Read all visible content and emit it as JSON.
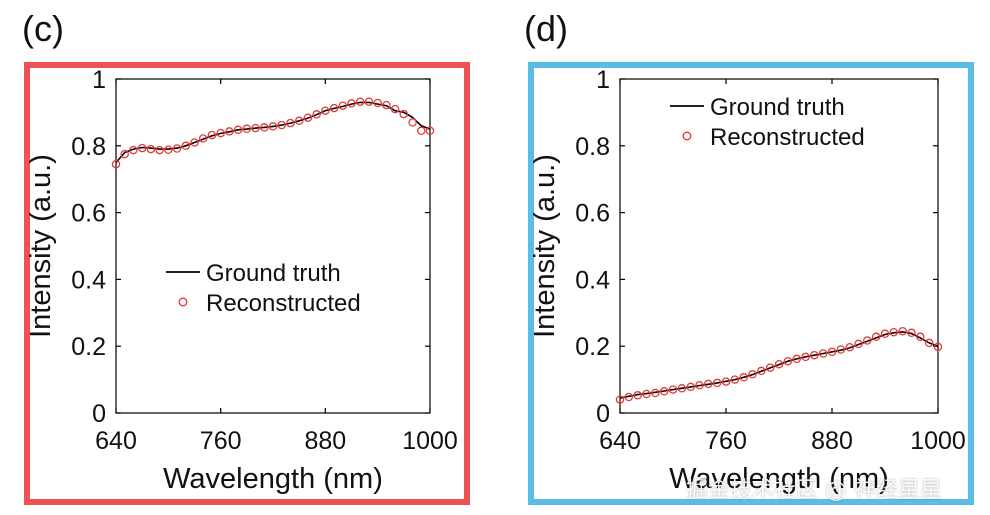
{
  "panel_labels": [
    "(c)",
    "(d)"
  ],
  "frame_colors": [
    "#ee5252",
    "#5bbde4"
  ],
  "watermark": "掘金技术社区 @ 神经星星",
  "chart_data": [
    {
      "type": "line",
      "xlabel": "Wavelength (nm)",
      "ylabel": "Intensity (a.u.)",
      "xlim": [
        640,
        1000
      ],
      "ylim": [
        0,
        1
      ],
      "xticks": [
        640,
        760,
        880,
        1000
      ],
      "yticks": [
        0,
        0.2,
        0.4,
        0.6,
        0.8,
        1
      ],
      "ytick_labels": [
        "0",
        "0.2",
        "0.4",
        "0.6",
        "0.8",
        "1"
      ],
      "legend": {
        "position": "center",
        "entries": [
          "Ground truth",
          "Reconstructed"
        ]
      },
      "series": [
        {
          "name": "Ground truth",
          "style": "line",
          "color": "#000000",
          "x": [
            640,
            650,
            660,
            670,
            680,
            690,
            700,
            710,
            720,
            730,
            740,
            750,
            760,
            770,
            780,
            790,
            800,
            810,
            820,
            830,
            840,
            850,
            860,
            870,
            880,
            890,
            900,
            910,
            920,
            930,
            940,
            950,
            960,
            970,
            980,
            990,
            1000
          ],
          "y": [
            0.75,
            0.78,
            0.79,
            0.795,
            0.793,
            0.79,
            0.79,
            0.793,
            0.8,
            0.81,
            0.82,
            0.83,
            0.837,
            0.842,
            0.848,
            0.85,
            0.853,
            0.855,
            0.858,
            0.862,
            0.868,
            0.875,
            0.883,
            0.893,
            0.905,
            0.912,
            0.918,
            0.925,
            0.93,
            0.93,
            0.925,
            0.92,
            0.905,
            0.9,
            0.885,
            0.86,
            0.85
          ]
        },
        {
          "name": "Reconstructed",
          "style": "marker",
          "color": "#e53a3a",
          "x": [
            640,
            650,
            660,
            670,
            680,
            690,
            700,
            710,
            720,
            730,
            740,
            750,
            760,
            770,
            780,
            790,
            800,
            810,
            820,
            830,
            840,
            850,
            860,
            870,
            880,
            890,
            900,
            910,
            920,
            930,
            940,
            950,
            960,
            970,
            980,
            990,
            1000
          ],
          "y": [
            0.745,
            0.775,
            0.787,
            0.793,
            0.79,
            0.787,
            0.788,
            0.792,
            0.8,
            0.81,
            0.822,
            0.832,
            0.838,
            0.843,
            0.848,
            0.851,
            0.853,
            0.855,
            0.858,
            0.862,
            0.868,
            0.875,
            0.884,
            0.894,
            0.905,
            0.913,
            0.92,
            0.927,
            0.932,
            0.932,
            0.928,
            0.922,
            0.91,
            0.895,
            0.87,
            0.845,
            0.845
          ]
        }
      ]
    },
    {
      "type": "line",
      "xlabel": "Wavelength (nm)",
      "ylabel": "Intensity (a.u.)",
      "xlim": [
        640,
        1000
      ],
      "ylim": [
        0,
        1
      ],
      "xticks": [
        640,
        760,
        880,
        1000
      ],
      "yticks": [
        0,
        0.2,
        0.4,
        0.6,
        0.8,
        1
      ],
      "ytick_labels": [
        "0",
        "0.2",
        "0.4",
        "0.6",
        "0.8",
        "1"
      ],
      "legend": {
        "position": "top-center",
        "entries": [
          "Ground truth",
          "Reconstructed"
        ]
      },
      "series": [
        {
          "name": "Ground truth",
          "style": "line",
          "color": "#000000",
          "x": [
            640,
            650,
            660,
            670,
            680,
            690,
            700,
            710,
            720,
            730,
            740,
            750,
            760,
            770,
            780,
            790,
            800,
            810,
            820,
            830,
            840,
            850,
            860,
            870,
            880,
            890,
            900,
            910,
            920,
            930,
            940,
            950,
            960,
            970,
            980,
            990,
            1000
          ],
          "y": [
            0.045,
            0.05,
            0.055,
            0.058,
            0.062,
            0.066,
            0.07,
            0.074,
            0.078,
            0.082,
            0.086,
            0.09,
            0.095,
            0.1,
            0.107,
            0.115,
            0.125,
            0.135,
            0.145,
            0.155,
            0.162,
            0.168,
            0.173,
            0.178,
            0.183,
            0.188,
            0.195,
            0.205,
            0.215,
            0.225,
            0.235,
            0.24,
            0.243,
            0.238,
            0.225,
            0.21,
            0.2
          ]
        },
        {
          "name": "Reconstructed",
          "style": "marker",
          "color": "#e53a3a",
          "x": [
            640,
            650,
            660,
            670,
            680,
            690,
            700,
            710,
            720,
            730,
            740,
            750,
            760,
            770,
            780,
            790,
            800,
            810,
            820,
            830,
            840,
            850,
            860,
            870,
            880,
            890,
            900,
            910,
            920,
            930,
            940,
            950,
            960,
            970,
            980,
            990,
            1000
          ],
          "y": [
            0.04,
            0.048,
            0.053,
            0.057,
            0.06,
            0.065,
            0.07,
            0.074,
            0.078,
            0.083,
            0.087,
            0.09,
            0.094,
            0.1,
            0.107,
            0.116,
            0.126,
            0.136,
            0.146,
            0.155,
            0.162,
            0.168,
            0.173,
            0.178,
            0.183,
            0.19,
            0.197,
            0.207,
            0.217,
            0.228,
            0.237,
            0.242,
            0.245,
            0.24,
            0.228,
            0.21,
            0.198
          ]
        }
      ]
    }
  ]
}
